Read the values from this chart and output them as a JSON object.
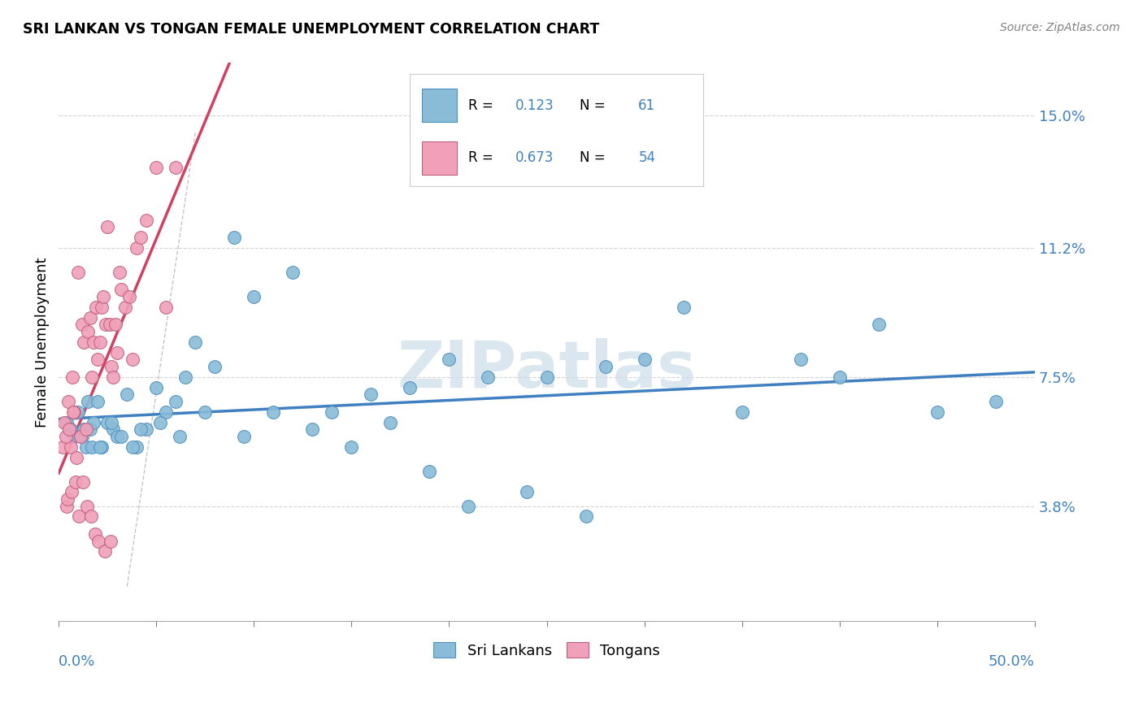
{
  "title": "SRI LANKAN VS TONGAN FEMALE UNEMPLOYMENT CORRELATION CHART",
  "source": "Source: ZipAtlas.com",
  "ylabel": "Female Unemployment",
  "ytick_values": [
    3.8,
    7.5,
    11.2,
    15.0
  ],
  "xmin": 0.0,
  "xmax": 50.0,
  "ymin": 0.5,
  "ymax": 16.5,
  "sri_lankans_color": "#8abcd8",
  "sri_lankans_edge": "#5090c0",
  "tongans_color": "#f0a0b8",
  "tongans_edge": "#c06080",
  "sl_line_color": "#4080c0",
  "t_line_color": "#d04060",
  "watermark_text": "ZIPatlas",
  "watermark_color": "#ccdde8",
  "r_sl": "0.123",
  "n_sl": "61",
  "r_t": "0.673",
  "n_t": "54",
  "value_color": "#4080c0",
  "sl_x": [
    0.4,
    0.6,
    0.8,
    1.0,
    1.2,
    1.4,
    1.5,
    1.6,
    1.8,
    2.0,
    2.2,
    2.5,
    2.8,
    3.0,
    3.5,
    4.0,
    4.5,
    5.0,
    5.5,
    6.0,
    6.5,
    7.0,
    8.0,
    9.0,
    10.0,
    12.0,
    14.0,
    16.0,
    18.0,
    20.0,
    22.0,
    25.0,
    28.0,
    30.0,
    32.0,
    35.0,
    38.0,
    40.0,
    42.0,
    45.0,
    48.0,
    1.1,
    1.3,
    1.7,
    2.1,
    2.7,
    3.2,
    3.8,
    4.2,
    5.2,
    6.2,
    7.5,
    9.5,
    11.0,
    13.0,
    15.0,
    17.0,
    19.0,
    21.0,
    24.0,
    27.0
  ],
  "sl_y": [
    6.2,
    6.0,
    5.8,
    6.5,
    5.8,
    5.5,
    6.8,
    6.0,
    6.2,
    6.8,
    5.5,
    6.2,
    6.0,
    5.8,
    7.0,
    5.5,
    6.0,
    7.2,
    6.5,
    6.8,
    7.5,
    8.5,
    7.8,
    11.5,
    9.8,
    10.5,
    6.5,
    7.0,
    7.2,
    8.0,
    7.5,
    7.5,
    7.8,
    8.0,
    9.5,
    6.5,
    8.0,
    7.5,
    9.0,
    6.5,
    6.8,
    5.8,
    6.0,
    5.5,
    5.5,
    6.2,
    5.8,
    5.5,
    6.0,
    6.2,
    5.8,
    6.5,
    5.8,
    6.5,
    6.0,
    5.5,
    6.2,
    4.8,
    3.8,
    4.2,
    3.5
  ],
  "t_x": [
    0.2,
    0.3,
    0.4,
    0.5,
    0.6,
    0.7,
    0.8,
    0.9,
    1.0,
    1.1,
    1.2,
    1.3,
    1.4,
    1.5,
    1.6,
    1.7,
    1.8,
    1.9,
    2.0,
    2.1,
    2.2,
    2.3,
    2.4,
    2.5,
    2.6,
    2.7,
    2.8,
    2.9,
    3.0,
    3.2,
    3.4,
    3.6,
    3.8,
    4.0,
    4.2,
    4.5,
    5.0,
    5.5,
    6.0,
    0.35,
    0.45,
    0.55,
    0.65,
    0.75,
    0.85,
    1.05,
    1.25,
    1.45,
    1.65,
    1.85,
    2.05,
    2.35,
    2.65,
    3.1
  ],
  "t_y": [
    5.5,
    6.2,
    3.8,
    6.8,
    5.5,
    7.5,
    6.5,
    5.2,
    10.5,
    5.8,
    9.0,
    8.5,
    6.0,
    8.8,
    9.2,
    7.5,
    8.5,
    9.5,
    8.0,
    8.5,
    9.5,
    9.8,
    9.0,
    11.8,
    9.0,
    7.8,
    7.5,
    9.0,
    8.2,
    10.0,
    9.5,
    9.8,
    8.0,
    11.2,
    11.5,
    12.0,
    13.5,
    9.5,
    13.5,
    5.8,
    4.0,
    6.0,
    4.2,
    6.5,
    4.5,
    3.5,
    4.5,
    3.8,
    3.5,
    3.0,
    2.8,
    2.5,
    2.8,
    10.5
  ]
}
